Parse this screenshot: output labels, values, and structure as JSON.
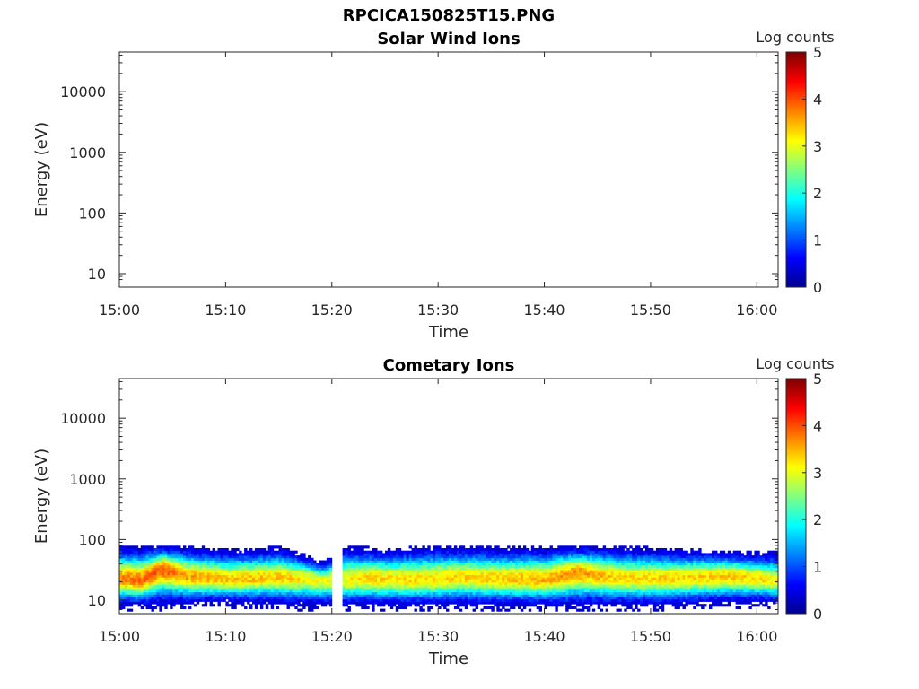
{
  "figure_title": "RPCICA150825T15.PNG",
  "colors": {
    "axis": "#262626",
    "colormap": [
      "#00008f",
      "#0000ff",
      "#0080ff",
      "#00ffff",
      "#80ff80",
      "#ffff00",
      "#ff8000",
      "#ff0000",
      "#800000"
    ]
  },
  "chart_data": [
    {
      "type": "heatmap",
      "title": "Solar Wind Ions",
      "xlabel": "Time",
      "ylabel": "Energy (eV)",
      "xlim": [
        "15:00",
        "16:02"
      ],
      "ylim": [
        6,
        45000
      ],
      "yscale": "log",
      "x_ticks": [
        "15:00",
        "15:10",
        "15:20",
        "15:30",
        "15:40",
        "15:50",
        "16:00"
      ],
      "y_ticks": [
        {
          "value": 10,
          "label": "10"
        },
        {
          "value": 100,
          "label": "100"
        },
        {
          "value": 1000,
          "label": "1000"
        },
        {
          "value": 10000,
          "label": "10000"
        }
      ],
      "colorbar": {
        "label": "Log counts",
        "range": [
          0,
          5
        ],
        "ticks": [
          "0",
          "1",
          "2",
          "3",
          "4",
          "5"
        ]
      },
      "peak": [],
      "upper_edge": [],
      "lower_edge": [],
      "data_gaps": []
    },
    {
      "type": "heatmap",
      "title": "Cometary Ions",
      "xlabel": "Time",
      "ylabel": "Energy (eV)",
      "xlim": [
        "15:00",
        "16:02"
      ],
      "ylim": [
        6,
        45000
      ],
      "yscale": "log",
      "x_ticks": [
        "15:00",
        "15:10",
        "15:20",
        "15:30",
        "15:40",
        "15:50",
        "16:00"
      ],
      "y_ticks": [
        {
          "value": 10,
          "label": "10"
        },
        {
          "value": 100,
          "label": "100"
        },
        {
          "value": 1000,
          "label": "1000"
        },
        {
          "value": 10000,
          "label": "10000"
        }
      ],
      "colorbar": {
        "label": "Log counts",
        "range": [
          0,
          5
        ],
        "ticks": [
          "0",
          "1",
          "2",
          "3",
          "4",
          "5"
        ]
      },
      "peak": [
        {
          "time": "15:00",
          "energy": 22,
          "log_counts": 3.7
        },
        {
          "time": "15:02",
          "energy": 20,
          "log_counts": 3.8
        },
        {
          "time": "15:04",
          "energy": 32,
          "log_counts": 4.0
        },
        {
          "time": "15:06",
          "energy": 24,
          "log_counts": 3.6
        },
        {
          "time": "15:10",
          "energy": 21,
          "log_counts": 3.4
        },
        {
          "time": "15:15",
          "energy": 23,
          "log_counts": 3.4
        },
        {
          "time": "15:20",
          "energy": 20,
          "log_counts": 3.0
        },
        {
          "time": "15:23",
          "energy": 22,
          "log_counts": 3.3
        },
        {
          "time": "15:28",
          "energy": 21,
          "log_counts": 3.3
        },
        {
          "time": "15:32",
          "energy": 23,
          "log_counts": 3.3
        },
        {
          "time": "15:36",
          "energy": 22,
          "log_counts": 3.4
        },
        {
          "time": "15:40",
          "energy": 21,
          "log_counts": 3.5
        },
        {
          "time": "15:43",
          "energy": 28,
          "log_counts": 3.7
        },
        {
          "time": "15:47",
          "energy": 22,
          "log_counts": 3.3
        },
        {
          "time": "15:52",
          "energy": 22,
          "log_counts": 3.3
        },
        {
          "time": "15:57",
          "energy": 24,
          "log_counts": 3.4
        },
        {
          "time": "16:02",
          "energy": 20,
          "log_counts": 3.2
        }
      ],
      "upper_edge": [
        {
          "time": "15:00",
          "energy": 75
        },
        {
          "time": "15:05",
          "energy": 75
        },
        {
          "time": "15:10",
          "energy": 65
        },
        {
          "time": "15:15",
          "energy": 70
        },
        {
          "time": "15:19",
          "energy": 40
        },
        {
          "time": "15:21",
          "energy": 75
        },
        {
          "time": "15:25",
          "energy": 65
        },
        {
          "time": "15:30",
          "energy": 75
        },
        {
          "time": "15:35",
          "energy": 70
        },
        {
          "time": "15:40",
          "energy": 72
        },
        {
          "time": "15:43",
          "energy": 75
        },
        {
          "time": "15:48",
          "energy": 72
        },
        {
          "time": "15:53",
          "energy": 65
        },
        {
          "time": "15:58",
          "energy": 60
        },
        {
          "time": "16:02",
          "energy": 58
        }
      ],
      "lower_edge": [
        {
          "time": "15:00",
          "energy": 7
        },
        {
          "time": "15:10",
          "energy": 8
        },
        {
          "time": "15:20",
          "energy": 7
        },
        {
          "time": "15:30",
          "energy": 7
        },
        {
          "time": "15:40",
          "energy": 7
        },
        {
          "time": "15:50",
          "energy": 7
        },
        {
          "time": "16:00",
          "energy": 8
        },
        {
          "time": "16:02",
          "energy": 8
        }
      ],
      "data_gaps": [
        {
          "start": "15:20",
          "end": "15:21"
        }
      ]
    }
  ]
}
